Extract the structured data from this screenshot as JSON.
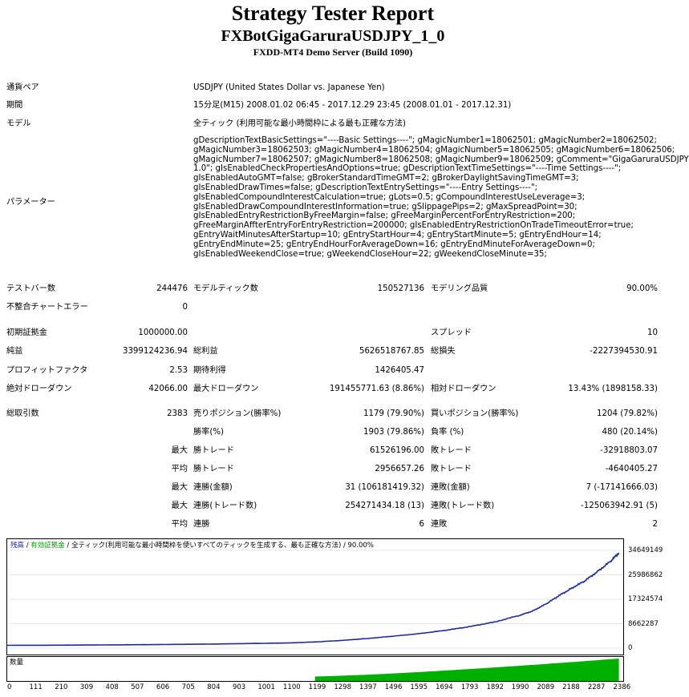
{
  "header": {
    "title": "Strategy Tester Report",
    "subtitle": "FXBotGigaGaruraUSDJPY_1_0",
    "server": "FXDD-MT4 Demo Server (Build 1090)"
  },
  "info": {
    "symbol_label": "通貨ペア",
    "symbol_value": "USDJPY (United States Dollar vs. Japanese Yen)",
    "period_label": "期間",
    "period_value": "15分足(M15) 2008.01.02 06:45 - 2017.12.29 23:45 (2008.01.01 - 2017.12.31)",
    "model_label": "モデル",
    "model_value": "全ティック (利用可能な最小時間枠による最も正確な方法)",
    "params_label": "パラメーター",
    "params_lines": [
      "gDescriptionTextBasicSettings=\"----Basic Settings----\"; gMagicNumber1=18062501; gMagicNumber2=18062502;",
      "gMagicNumber3=18062503; gMagicNumber4=18062504; gMagicNumber5=18062505; gMagicNumber6=18062506;",
      "gMagicNumber7=18062507; gMagicNumber8=18062508; gMagicNumber9=18062509; gComment=\"GigaGaruraUSDJPY",
      "1.0\"; gIsEnabledCheckPropertiesAndOptions=true; gDescriptionTextTimeSettings=\"----Time Settings----\";",
      "gIsEnabledAutoGMT=false; gBrokerStandardTimeGMT=2; gBrokerDaylightSavingTimeGMT=3;",
      "gIsEnabledDrawTimes=false; gDescriptionTextEntrySettings=\"----Entry Settings----\";",
      "gIsEnabledCompoundInterestCalculation=true; gLots=0.5; gCompoundInterestUseLeverage=3;",
      "gIsEnabledDrawCompoundInterestInformation=true; gSlippagePips=2; gMaxSpreadPoint=30;",
      "gIsEnabledEntryRestrictionByFreeMargin=false; gFreeMarginPercentForEntryRestriction=200;",
      "gFreeMarginAffterEntryForEntryRestriction=200000; gIsEnabledEntryRestrictionOnTradeTimeoutError=true;",
      "gEntryWaitMinutesAfterStartup=10; gEntryStartHour=4; gEntryStartMinute=5; gEntryEndHour=14;",
      "gEntryEndMinute=25; gEntryEndHourForAverageDown=16; gEntryEndMinuteForAverageDown=0;",
      "gIsEnabledWeekendClose=true; gWeekendCloseHour=22; gWeekendCloseMinute=35;"
    ]
  },
  "stats": {
    "bars_label": "テストバー数",
    "bars_value": "244476",
    "ticks_label": "モデルティック数",
    "ticks_value": "150527136",
    "quality_label": "モデリング品質",
    "quality_value": "90.00%",
    "mismatch_label": "不整合チャートエラー",
    "mismatch_value": "0",
    "deposit_label": "初期証拠金",
    "deposit_value": "1000000.00",
    "spread_label": "スプレッド",
    "spread_value": "10",
    "net_label": "純益",
    "net_value": "3399124236.94",
    "gross_profit_label": "総利益",
    "gross_profit_value": "5626518767.85",
    "gross_loss_label": "総損失",
    "gross_loss_value": "-2227394530.91",
    "pf_label": "プロフィットファクタ",
    "pf_value": "2.53",
    "expected_label": "期待利得",
    "expected_value": "1426405.47",
    "abs_dd_label": "絶対ドローダウン",
    "abs_dd_value": "42066.00",
    "max_dd_label": "最大ドローダウン",
    "max_dd_value": "191455771.63 (8.86%)",
    "rel_dd_label": "相対ドローダウン",
    "rel_dd_value": "13.43% (1898158.33)",
    "total_trades_label": "総取引数",
    "total_trades_value": "2383",
    "short_label": "売りポジション(勝率%)",
    "short_value": "1179 (79.90%)",
    "long_label": "買いポジション(勝率%)",
    "long_value": "1204 (79.82%)",
    "win_pct_label": "勝率(%)",
    "win_pct_value": "1903 (79.86%)",
    "loss_pct_label": "負率 (%)",
    "loss_pct_value": "480 (20.14%)",
    "max_word": "最大",
    "avg_word": "平均",
    "largest_win_label": "勝トレード",
    "largest_win_value": "61526196.00",
    "largest_loss_label": "敗トレード",
    "largest_loss_value": "-32918803.07",
    "avg_win_label": "勝トレード",
    "avg_win_value": "2956657.26",
    "avg_loss_label": "敗トレード",
    "avg_loss_value": "-4640405.27",
    "max_cons_wins_money_label": "連勝(金額)",
    "max_cons_wins_money_value": "31 (106181419.32)",
    "max_cons_losses_money_label": "連敗(金額)",
    "max_cons_losses_money_value": "7 (-17141666.03)",
    "max_cons_wins_trades_label": "連勝(トレード数)",
    "max_cons_wins_trades_value": "254271434.18 (13)",
    "max_cons_losses_trades_label": "連敗(トレード数)",
    "max_cons_losses_trades_value": "-125063942.91 (5)",
    "avg_cons_wins_label": "連勝",
    "avg_cons_wins_value": "6",
    "avg_cons_losses_label": "連敗",
    "avg_cons_losses_value": "2"
  },
  "chart": {
    "legend_balance": "残高",
    "legend_sep": " / ",
    "legend_equity": "有効証拠金",
    "legend_rest": " / 全ティック(利用可能な最小時間枠を使いすべてのティックを生成する、最も正確な方法) / 90.00%",
    "volume_label": "数量",
    "y_ticks": [
      "34649149",
      "25986862",
      "17324574",
      "8662287",
      "0"
    ],
    "x_ticks": [
      "0",
      "111",
      "210",
      "309",
      "408",
      "507",
      "606",
      "705",
      "804",
      "903",
      "1001",
      "1100",
      "1199",
      "1298",
      "1397",
      "1496",
      "1595",
      "1694",
      "1793",
      "1892",
      "1990",
      "2089",
      "2188",
      "2287",
      "2386"
    ],
    "colors": {
      "balance": "#1c2a9c",
      "equity": "#00a000",
      "volume": "#00b000"
    }
  },
  "chart_data": {
    "type": "line",
    "title": "",
    "xlabel": "",
    "ylabel": "",
    "xlim": [
      0,
      2400
    ],
    "ylim": [
      0,
      34649149
    ],
    "x_ticks": [
      0,
      111,
      210,
      309,
      408,
      507,
      606,
      705,
      804,
      903,
      1001,
      1100,
      1199,
      1298,
      1397,
      1496,
      1595,
      1694,
      1793,
      1892,
      1990,
      2089,
      2188,
      2287,
      2386
    ],
    "series": [
      {
        "name": "残高",
        "x": [
          0,
          200,
          400,
          600,
          800,
          1000,
          1100,
          1200,
          1300,
          1400,
          1500,
          1600,
          1700,
          1800,
          1900,
          2000,
          2050,
          2100,
          2150,
          2200,
          2250,
          2300,
          2350,
          2383
        ],
        "values": [
          1000000,
          1050000,
          1150000,
          1280000,
          1450000,
          1700000,
          1850000,
          2200000,
          2700000,
          3400000,
          4200000,
          5100000,
          6200000,
          7600000,
          9300000,
          11700000,
          13300000,
          15700000,
          18600000,
          21300000,
          23800000,
          27200000,
          30700000,
          33800000
        ]
      }
    ],
    "volume": {
      "start_x": 1199,
      "end_x": 2383,
      "level_start": 0.2,
      "level_end": 1.0
    }
  }
}
